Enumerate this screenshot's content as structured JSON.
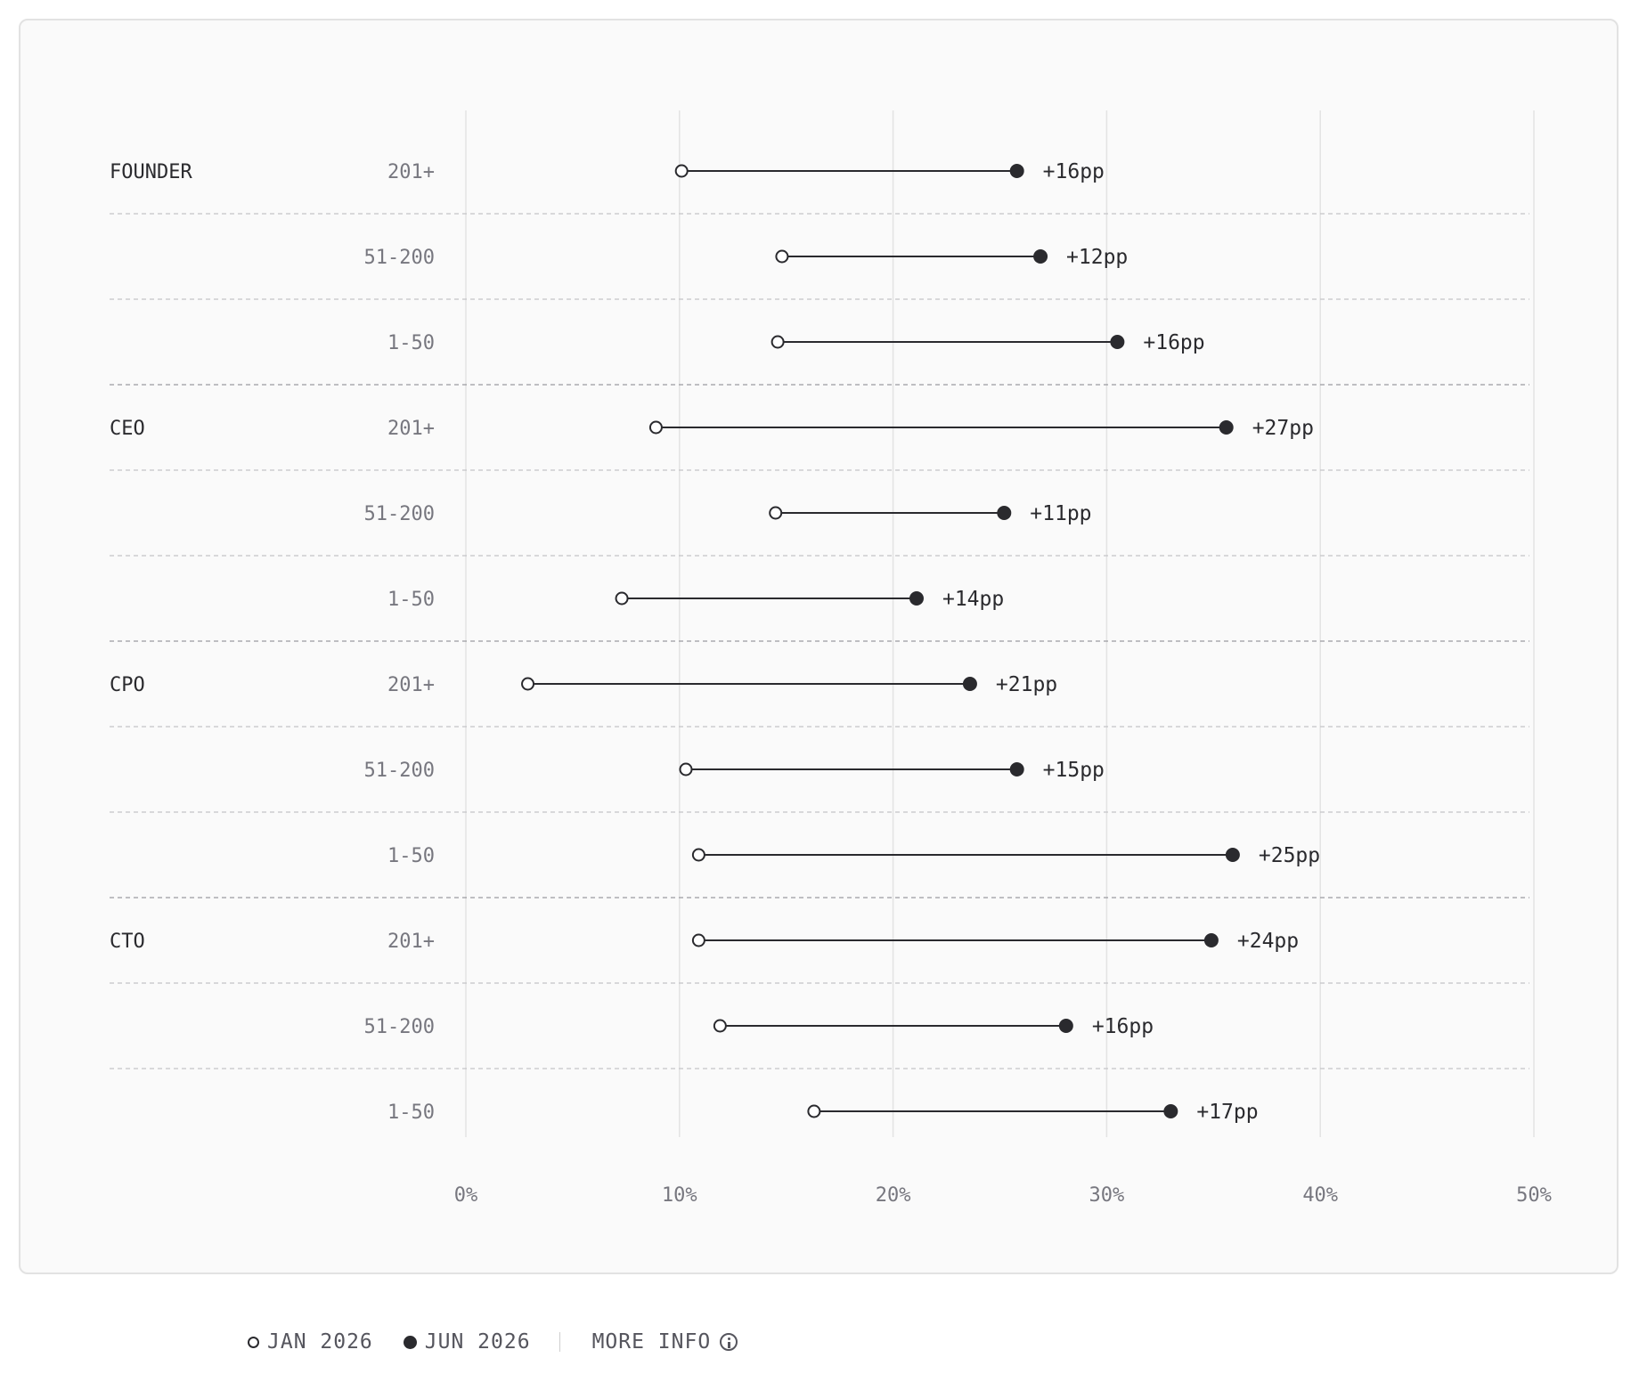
{
  "colors": {
    "ink": "#2a2a2e",
    "muted": "#77777f",
    "grid": "#e3e3e3",
    "background": "#fafafa"
  },
  "chart_data": {
    "type": "dumbbell",
    "xlim": [
      0,
      50
    ],
    "x_ticks": [
      "0%",
      "10%",
      "20%",
      "30%",
      "40%",
      "50%"
    ],
    "x_tick_values": [
      0,
      10,
      20,
      30,
      40,
      50
    ],
    "series": [
      {
        "name": "JAN 2026",
        "marker": "open-circle"
      },
      {
        "name": "JUN 2026",
        "marker": "filled-circle"
      }
    ],
    "groups": [
      {
        "role": "FOUNDER",
        "rows": [
          {
            "size": "201+",
            "jan": 10.1,
            "jun": 25.8,
            "delta": "+16pp"
          },
          {
            "size": "51-200",
            "jan": 14.8,
            "jun": 26.9,
            "delta": "+12pp"
          },
          {
            "size": "1-50",
            "jan": 14.6,
            "jun": 30.5,
            "delta": "+16pp"
          }
        ]
      },
      {
        "role": "CEO",
        "rows": [
          {
            "size": "201+",
            "jan": 8.9,
            "jun": 35.6,
            "delta": "+27pp"
          },
          {
            "size": "51-200",
            "jan": 14.5,
            "jun": 25.2,
            "delta": "+11pp"
          },
          {
            "size": "1-50",
            "jan": 7.3,
            "jun": 21.1,
            "delta": "+14pp"
          }
        ]
      },
      {
        "role": "CPO",
        "rows": [
          {
            "size": "201+",
            "jan": 2.9,
            "jun": 23.6,
            "delta": "+21pp"
          },
          {
            "size": "51-200",
            "jan": 10.3,
            "jun": 25.8,
            "delta": "+15pp"
          },
          {
            "size": "1-50",
            "jan": 10.9,
            "jun": 35.9,
            "delta": "+25pp"
          }
        ]
      },
      {
        "role": "CTO",
        "rows": [
          {
            "size": "201+",
            "jan": 10.9,
            "jun": 34.9,
            "delta": "+24pp"
          },
          {
            "size": "51-200",
            "jan": 11.9,
            "jun": 28.1,
            "delta": "+16pp"
          },
          {
            "size": "1-50",
            "jan": 16.3,
            "jun": 33.0,
            "delta": "+17pp"
          }
        ]
      }
    ]
  },
  "legend": {
    "jan_label": "JAN 2026",
    "jun_label": "JUN 2026",
    "more_info_label": "MORE INFO",
    "info_icon": "info-circle-icon"
  }
}
